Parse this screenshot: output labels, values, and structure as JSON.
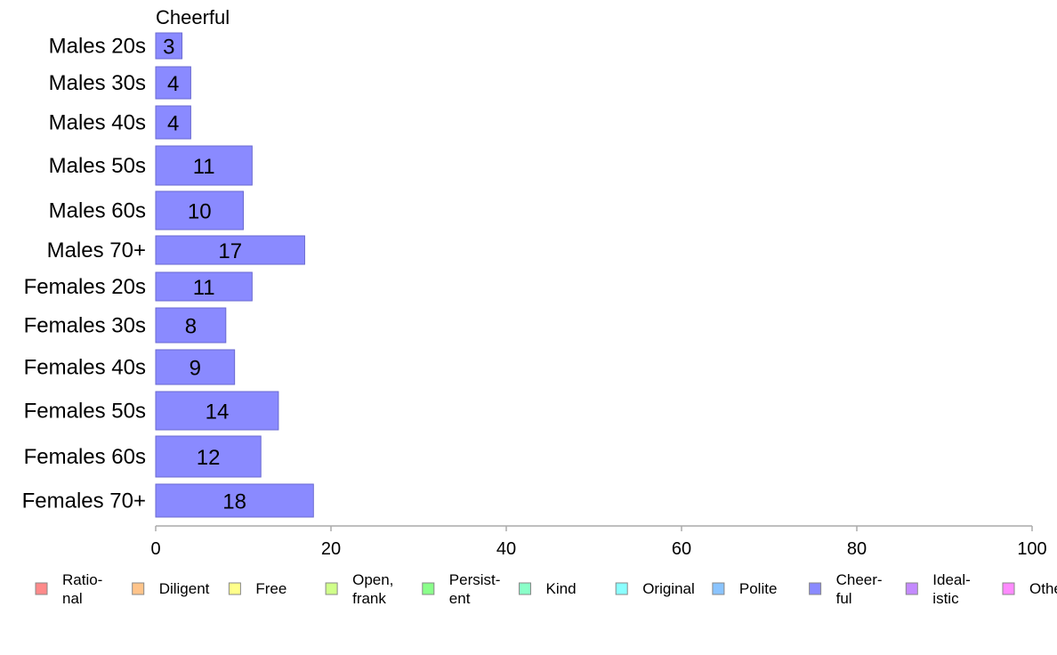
{
  "chart_data": {
    "type": "bar",
    "orientation": "horizontal",
    "title": "Cheerful",
    "categories": [
      "Males 20s",
      "Males 30s",
      "Males 40s",
      "Males 50s",
      "Males 60s",
      "Males 70+",
      "Females 20s",
      "Females 30s",
      "Females 40s",
      "Females 50s",
      "Females 60s",
      "Females 70+"
    ],
    "series": [
      {
        "values": [
          3,
          4,
          4,
          11,
          10,
          17,
          11,
          8,
          9,
          14,
          12,
          18
        ],
        "color": "#8a8aff"
      }
    ],
    "bar_value_labels": [
      "3",
      "4",
      "4",
      "11",
      "10",
      "17",
      "11",
      "8",
      "9",
      "14",
      "12",
      "18"
    ],
    "xlim": [
      0,
      100
    ],
    "x_ticks": [
      0,
      20,
      40,
      60,
      80,
      100
    ],
    "x_tick_labels": [
      "0",
      "20",
      "40",
      "60",
      "80",
      "100"
    ],
    "grid": false,
    "legend_position": "bottom",
    "legend": [
      {
        "lines": [
          "Ratio-",
          "nal"
        ],
        "color": "#ff8a8a"
      },
      {
        "lines": [
          "Diligent"
        ],
        "color": "#ffc48a"
      },
      {
        "lines": [
          "Free"
        ],
        "color": "#ffff8a"
      },
      {
        "lines": [
          "Open,",
          "frank"
        ],
        "color": "#d0ff8a"
      },
      {
        "lines": [
          "Persist-",
          "ent"
        ],
        "color": "#8aff8a"
      },
      {
        "lines": [
          "Kind"
        ],
        "color": "#8affc8"
      },
      {
        "lines": [
          "Original"
        ],
        "color": "#8affff"
      },
      {
        "lines": [
          "Polite"
        ],
        "color": "#8ac4ff"
      },
      {
        "lines": [
          "Cheer-",
          "ful"
        ],
        "color": "#8a8aff"
      },
      {
        "lines": [
          "Ideal-",
          "istic"
        ],
        "color": "#c48aff"
      },
      {
        "lines": [
          "Othe"
        ],
        "color": "#ff8aff"
      }
    ],
    "colors": {
      "bar_stroke": "#6a6ad0",
      "axis": "#aaaaaa"
    }
  }
}
